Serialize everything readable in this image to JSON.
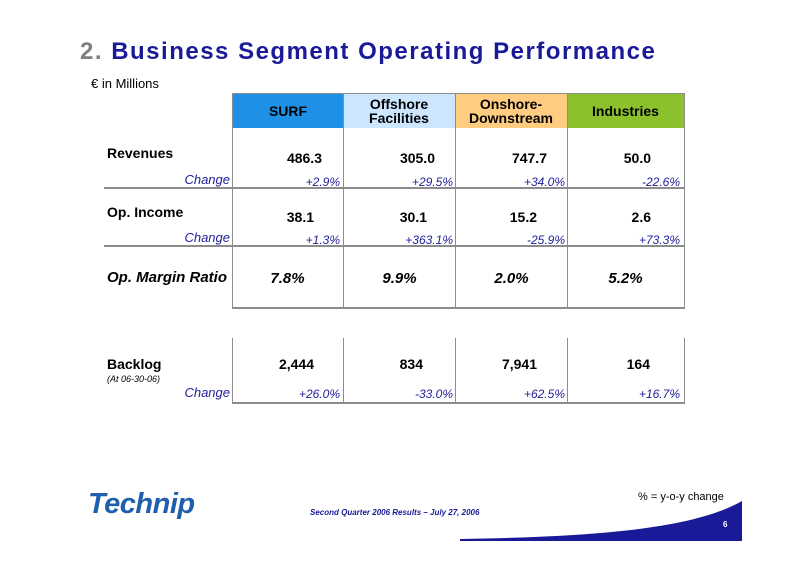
{
  "title": {
    "number": "2.",
    "text": "Business Segment Operating Performance"
  },
  "unit_label": "€ in Millions",
  "segments": [
    {
      "line1": "SURF",
      "line2": "",
      "color": "#1e90e6"
    },
    {
      "line1": "Offshore",
      "line2": "Facilities",
      "color": "#cce6ff"
    },
    {
      "line1": "Onshore-",
      "line2": "Downstream",
      "color": "#ffcc80"
    },
    {
      "line1": "Industries",
      "line2": "",
      "color": "#8ac12c"
    }
  ],
  "rows": {
    "revenues": {
      "label": "Revenues",
      "values": [
        "486.3",
        "305.0",
        "747.7",
        "50.0"
      ],
      "change_label": "Change",
      "changes": [
        "+2.9%",
        "+29.5%",
        "+34.0%",
        "-22.6%"
      ]
    },
    "op_income": {
      "label": "Op. Income",
      "values": [
        "38.1",
        "30.1",
        "15.2",
        "2.6"
      ],
      "change_label": "Change",
      "changes": [
        "+1.3%",
        "+363.1%",
        "-25.9%",
        "+73.3%"
      ]
    },
    "op_margin": {
      "label": "Op. Margin Ratio",
      "values": [
        "7.8%",
        "9.9%",
        "2.0%",
        "5.2%"
      ]
    },
    "backlog": {
      "label": "Backlog",
      "sublabel": "(At 06-30-06)",
      "values": [
        "2,444",
        "834",
        "7,941",
        "164"
      ],
      "change_label": "Change",
      "changes": [
        "+26.0%",
        "-33.0%",
        "+62.5%",
        "+16.7%"
      ]
    }
  },
  "footer": {
    "logo_text": "Technip",
    "caption": "Second Quarter 2006 Results – July 27, 2006",
    "note": "% = y-o-y change",
    "page_number": "6"
  },
  "colors": {
    "title": "#1a1a99",
    "change_text": "#1f1f99",
    "logo": "#1f5fae",
    "footer_bar": "#1a1a99"
  }
}
